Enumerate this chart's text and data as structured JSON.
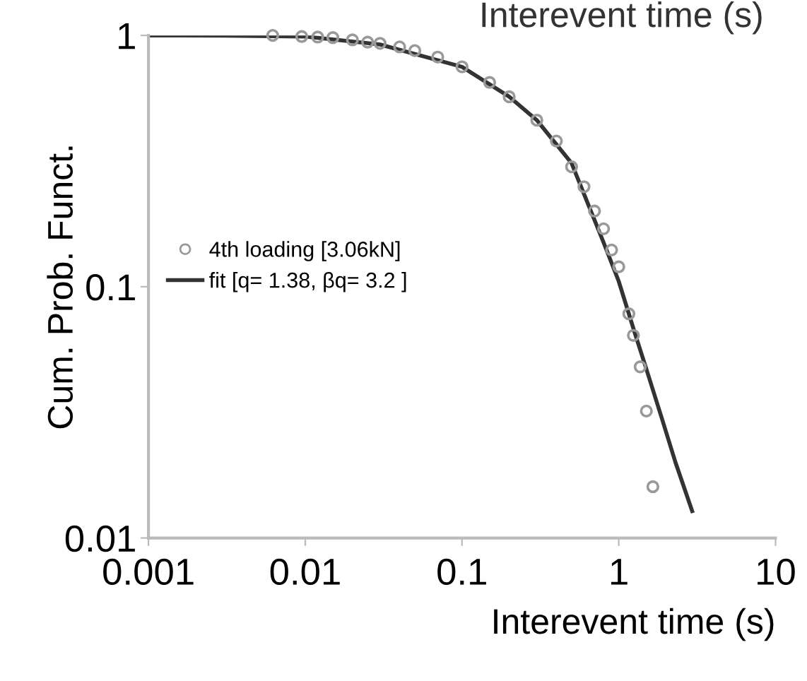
{
  "chart_data": {
    "type": "scatter",
    "xlabel": "Interevent time (s)",
    "ylabel": "Cum. Prob. Funct.",
    "log": "xy",
    "annotations": [
      "Interevent time (s)"
    ],
    "xlim": [
      0.001,
      10
    ],
    "ylim": [
      0.01,
      1
    ],
    "xticks": [
      0.001,
      0.01,
      0.1,
      1,
      10
    ],
    "yticks": [
      0.01,
      0.1,
      1
    ],
    "grid": false,
    "legend": "left",
    "marker": "circle",
    "series": [
      {
        "name": "4th loading [3.06kN]",
        "color": "#999999",
        "x": [
          0.0062,
          0.0095,
          0.012,
          0.015,
          0.02,
          0.025,
          0.03,
          0.04,
          0.05,
          0.07,
          0.1,
          0.15,
          0.2,
          0.3,
          0.4,
          0.5,
          0.6,
          0.7,
          0.8,
          0.9,
          1.0,
          1.16,
          1.24,
          1.37,
          1.5,
          1.65
        ],
        "values": [
          1,
          0.99,
          0.985,
          0.98,
          0.96,
          0.94,
          0.93,
          0.9,
          0.87,
          0.82,
          0.75,
          0.65,
          0.57,
          0.46,
          0.38,
          0.3,
          0.25,
          0.2,
          0.17,
          0.14,
          0.12,
          0.078,
          0.064,
          0.048,
          0.032,
          0.016
        ]
      },
      {
        "name": "fit [q= 1.38, βq= 3.2 ]",
        "type": "line",
        "marker": "none",
        "color": "#333333",
        "x": [
          0.001,
          0.003,
          0.01,
          0.03,
          0.1,
          0.2,
          0.3,
          0.5,
          0.8,
          1,
          1.27,
          1.5,
          1.85,
          2.3,
          2.94
        ],
        "values": [
          1,
          0.997,
          0.99,
          0.92,
          0.75,
          0.57,
          0.46,
          0.31,
          0.15,
          0.105,
          0.065,
          0.047,
          0.031,
          0.02,
          0.0128
        ]
      }
    ]
  }
}
